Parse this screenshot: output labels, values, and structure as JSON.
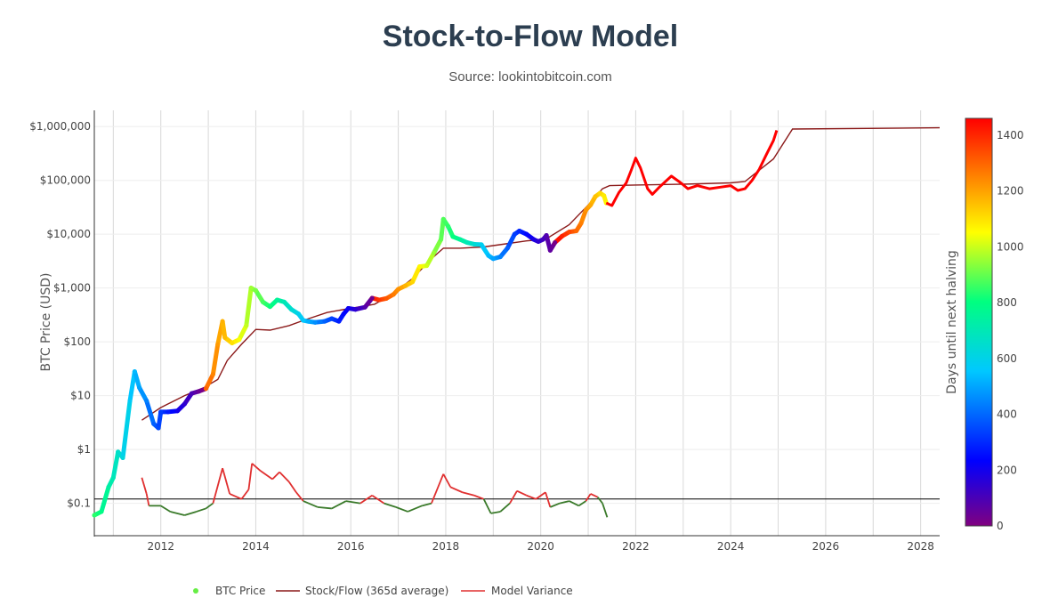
{
  "chart_data": {
    "type": "scatter",
    "title": "Stock-to-Flow Model",
    "subtitle": "Source: lookintobitcoin.com",
    "ylabel": "BTC Price (USD)",
    "yscale": "log",
    "ylim": [
      0.025,
      2000000
    ],
    "xlim": [
      2010.6,
      2028.4
    ],
    "grid": true,
    "x_ticks": [
      "2012",
      "2014",
      "2016",
      "2018",
      "2020",
      "2022",
      "2024",
      "2026",
      "2028"
    ],
    "y_ticks": [
      {
        "value": 1000000,
        "label": "$1,000,000"
      },
      {
        "value": 100000,
        "label": "$100,000"
      },
      {
        "value": 10000,
        "label": "$10,000"
      },
      {
        "value": 1000,
        "label": "$1,000"
      },
      {
        "value": 100,
        "label": "$100"
      },
      {
        "value": 10,
        "label": "$10"
      },
      {
        "value": 1,
        "label": "$1"
      },
      {
        "value": 0.1,
        "label": "$0.1"
      }
    ],
    "colorbar": {
      "title": "Days until next halving",
      "range": [
        0,
        1460
      ],
      "ticks": [
        "0",
        "200",
        "400",
        "600",
        "800",
        "1000",
        "1200",
        "1400"
      ],
      "colorscale": [
        "#800080",
        "#0000ff",
        "#00c8ff",
        "#00ff80",
        "#ffff00",
        "#ff8000",
        "#ff0000"
      ]
    },
    "legend": {
      "position": "bottom-center",
      "items": [
        {
          "label": "BTC Price",
          "color": "#66ee44"
        },
        {
          "label": "Stock/Flow (365d average)",
          "color": "#8b1a1a"
        },
        {
          "label": "Model Variance",
          "color": "#e03030"
        }
      ]
    },
    "reference_line": {
      "y": 0.12,
      "color": "#000000"
    },
    "series": [
      {
        "name": "BTC Price",
        "points": [
          [
            2010.6,
            0.06
          ],
          [
            2010.75,
            0.07
          ],
          [
            2010.9,
            0.2
          ],
          [
            2011.0,
            0.3
          ],
          [
            2011.1,
            0.9
          ],
          [
            2011.2,
            0.7
          ],
          [
            2011.35,
            8
          ],
          [
            2011.45,
            28
          ],
          [
            2011.55,
            14
          ],
          [
            2011.7,
            8
          ],
          [
            2011.85,
            3
          ],
          [
            2011.95,
            2.5
          ],
          [
            2012.0,
            5
          ],
          [
            2012.15,
            5
          ],
          [
            2012.35,
            5.2
          ],
          [
            2012.5,
            7
          ],
          [
            2012.65,
            11
          ],
          [
            2012.8,
            12
          ],
          [
            2012.95,
            13.5
          ],
          [
            2013.1,
            25
          ],
          [
            2013.2,
            90
          ],
          [
            2013.3,
            240
          ],
          [
            2013.35,
            120
          ],
          [
            2013.5,
            95
          ],
          [
            2013.65,
            110
          ],
          [
            2013.8,
            200
          ],
          [
            2013.9,
            1000
          ],
          [
            2014.0,
            900
          ],
          [
            2014.15,
            550
          ],
          [
            2014.3,
            450
          ],
          [
            2014.45,
            600
          ],
          [
            2014.6,
            550
          ],
          [
            2014.75,
            400
          ],
          [
            2014.9,
            330
          ],
          [
            2015.0,
            250
          ],
          [
            2015.1,
            240
          ],
          [
            2015.25,
            230
          ],
          [
            2015.45,
            240
          ],
          [
            2015.6,
            270
          ],
          [
            2015.75,
            240
          ],
          [
            2015.85,
            330
          ],
          [
            2015.95,
            420
          ],
          [
            2016.1,
            400
          ],
          [
            2016.3,
            440
          ],
          [
            2016.45,
            650
          ],
          [
            2016.6,
            600
          ],
          [
            2016.75,
            640
          ],
          [
            2016.9,
            760
          ],
          [
            2017.0,
            950
          ],
          [
            2017.15,
            1100
          ],
          [
            2017.3,
            1300
          ],
          [
            2017.45,
            2500
          ],
          [
            2017.6,
            2600
          ],
          [
            2017.75,
            4500
          ],
          [
            2017.9,
            8000
          ],
          [
            2017.95,
            19000
          ],
          [
            2018.05,
            14000
          ],
          [
            2018.15,
            9000
          ],
          [
            2018.3,
            8000
          ],
          [
            2018.45,
            7000
          ],
          [
            2018.6,
            6500
          ],
          [
            2018.75,
            6400
          ],
          [
            2018.9,
            4000
          ],
          [
            2019.0,
            3500
          ],
          [
            2019.15,
            3800
          ],
          [
            2019.3,
            5500
          ],
          [
            2019.45,
            10000
          ],
          [
            2019.55,
            11500
          ],
          [
            2019.7,
            10000
          ],
          [
            2019.85,
            8000
          ],
          [
            2019.95,
            7300
          ],
          [
            2020.05,
            8000
          ],
          [
            2020.12,
            9500
          ],
          [
            2020.2,
            5000
          ],
          [
            2020.3,
            7000
          ],
          [
            2020.45,
            9200
          ],
          [
            2020.6,
            11000
          ],
          [
            2020.75,
            11500
          ],
          [
            2020.85,
            16000
          ],
          [
            2020.95,
            28000
          ],
          [
            2021.05,
            35000
          ],
          [
            2021.15,
            50000
          ],
          [
            2021.25,
            58000
          ],
          [
            2021.33,
            52000
          ],
          [
            2021.38,
            38000
          ]
        ]
      },
      {
        "name": "Stock/Flow (365d average)",
        "points": [
          [
            2011.6,
            3.5
          ],
          [
            2012.0,
            6
          ],
          [
            2012.5,
            10
          ],
          [
            2012.9,
            14
          ],
          [
            2013.2,
            20
          ],
          [
            2013.4,
            45
          ],
          [
            2013.7,
            90
          ],
          [
            2014.0,
            170
          ],
          [
            2014.3,
            165
          ],
          [
            2014.7,
            200
          ],
          [
            2015.0,
            250
          ],
          [
            2015.5,
            350
          ],
          [
            2016.0,
            420
          ],
          [
            2016.5,
            500
          ],
          [
            2016.9,
            800
          ],
          [
            2017.3,
            1500
          ],
          [
            2017.7,
            3500
          ],
          [
            2017.95,
            5500
          ],
          [
            2018.3,
            5500
          ],
          [
            2018.8,
            5800
          ],
          [
            2019.2,
            6500
          ],
          [
            2019.7,
            7500
          ],
          [
            2020.1,
            8000
          ],
          [
            2020.6,
            15000
          ],
          [
            2021.0,
            35000
          ],
          [
            2021.3,
            70000
          ],
          [
            2021.45,
            80000
          ],
          [
            2022.0,
            82000
          ],
          [
            2023.0,
            85000
          ],
          [
            2024.0,
            90000
          ],
          [
            2024.3,
            95000
          ],
          [
            2024.9,
            250000
          ],
          [
            2025.3,
            900000
          ],
          [
            2028.4,
            950000
          ]
        ]
      },
      {
        "name": "Model Variance",
        "points": [
          [
            2011.6,
            0.3
          ],
          [
            2011.7,
            0.15
          ],
          [
            2011.75,
            0.09
          ],
          [
            2012.0,
            0.09
          ],
          [
            2012.2,
            0.07
          ],
          [
            2012.5,
            0.06
          ],
          [
            2012.75,
            0.07
          ],
          [
            2012.95,
            0.08
          ],
          [
            2013.1,
            0.1
          ],
          [
            2013.3,
            0.45
          ],
          [
            2013.45,
            0.15
          ],
          [
            2013.7,
            0.12
          ],
          [
            2013.85,
            0.18
          ],
          [
            2013.92,
            0.55
          ],
          [
            2014.1,
            0.4
          ],
          [
            2014.35,
            0.28
          ],
          [
            2014.5,
            0.38
          ],
          [
            2014.7,
            0.25
          ],
          [
            2014.85,
            0.16
          ],
          [
            2015.0,
            0.11
          ],
          [
            2015.3,
            0.085
          ],
          [
            2015.6,
            0.08
          ],
          [
            2015.9,
            0.11
          ],
          [
            2016.2,
            0.1
          ],
          [
            2016.45,
            0.14
          ],
          [
            2016.7,
            0.1
          ],
          [
            2016.95,
            0.085
          ],
          [
            2017.2,
            0.07
          ],
          [
            2017.5,
            0.09
          ],
          [
            2017.7,
            0.1
          ],
          [
            2017.95,
            0.35
          ],
          [
            2018.1,
            0.2
          ],
          [
            2018.35,
            0.16
          ],
          [
            2018.6,
            0.14
          ],
          [
            2018.8,
            0.12
          ],
          [
            2018.95,
            0.065
          ],
          [
            2019.15,
            0.07
          ],
          [
            2019.35,
            0.1
          ],
          [
            2019.5,
            0.17
          ],
          [
            2019.7,
            0.14
          ],
          [
            2019.9,
            0.12
          ],
          [
            2020.1,
            0.16
          ],
          [
            2020.2,
            0.085
          ],
          [
            2020.4,
            0.1
          ],
          [
            2020.6,
            0.11
          ],
          [
            2020.8,
            0.09
          ],
          [
            2020.95,
            0.11
          ],
          [
            2021.05,
            0.15
          ],
          [
            2021.2,
            0.13
          ],
          [
            2021.3,
            0.1
          ],
          [
            2021.4,
            0.055
          ]
        ]
      },
      {
        "name": "BTC Price projection",
        "color": "#ff0000",
        "points": [
          [
            2021.38,
            38000
          ],
          [
            2021.5,
            34000
          ],
          [
            2021.65,
            60000
          ],
          [
            2021.8,
            90000
          ],
          [
            2021.9,
            150000
          ],
          [
            2022.0,
            260000
          ],
          [
            2022.1,
            170000
          ],
          [
            2022.25,
            70000
          ],
          [
            2022.35,
            55000
          ],
          [
            2022.5,
            75000
          ],
          [
            2022.75,
            120000
          ],
          [
            2022.95,
            90000
          ],
          [
            2023.1,
            70000
          ],
          [
            2023.3,
            80000
          ],
          [
            2023.55,
            70000
          ],
          [
            2023.8,
            75000
          ],
          [
            2024.0,
            80000
          ],
          [
            2024.15,
            65000
          ],
          [
            2024.3,
            70000
          ],
          [
            2024.45,
            100000
          ],
          [
            2024.6,
            160000
          ],
          [
            2024.75,
            300000
          ],
          [
            2024.9,
            550000
          ],
          [
            2024.97,
            850000
          ]
        ]
      }
    ]
  }
}
